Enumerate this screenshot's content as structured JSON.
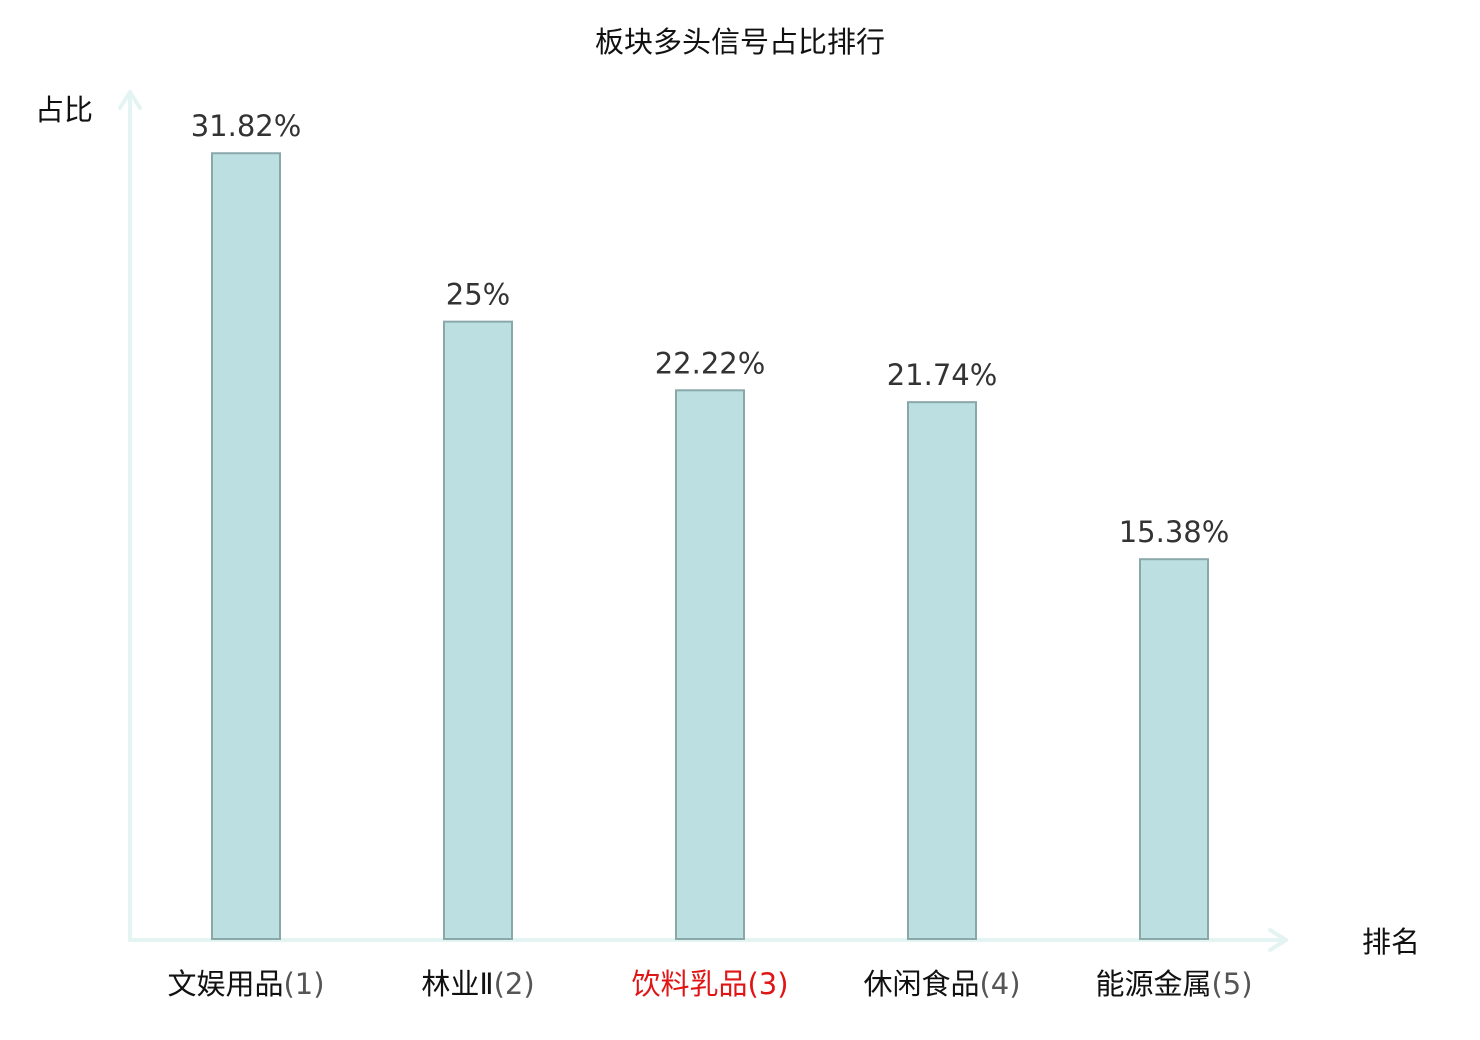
{
  "chart_data": {
    "type": "bar",
    "title": "板块多头信号占比排行",
    "ylabel": "占比",
    "xlabel": "排名",
    "categories": [
      {
        "name": "文娱用品",
        "rank": "(1)",
        "highlight": false
      },
      {
        "name": "林业Ⅱ",
        "rank": "(2)",
        "highlight": false
      },
      {
        "name": "饮料乳品",
        "rank": "(3)",
        "highlight": true
      },
      {
        "name": "休闲食品",
        "rank": "(4)",
        "highlight": false
      },
      {
        "name": "能源金属",
        "rank": "(5)",
        "highlight": false
      }
    ],
    "values": [
      31.82,
      25,
      22.22,
      21.74,
      15.38
    ],
    "value_labels": [
      "31.82%",
      "25%",
      "22.22%",
      "21.74%",
      "15.38%"
    ],
    "ylim": [
      0,
      34.3
    ],
    "grid": false,
    "legend": "none"
  },
  "colors": {
    "bar_fill": "#bce0e2",
    "bar_stroke": "#8aa7aa",
    "axis": "#e3f4f2",
    "value_text": "#333333",
    "category_text": "#111111",
    "rank_text": "#555555",
    "highlight_text": "#e01515"
  }
}
